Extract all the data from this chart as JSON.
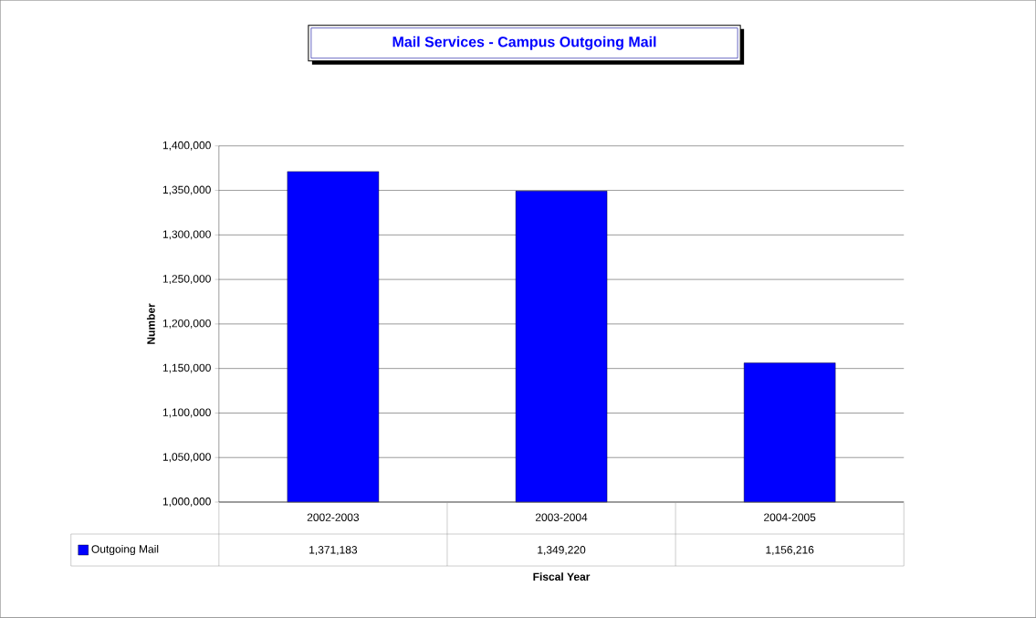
{
  "chart_data": {
    "type": "bar",
    "title": "Mail Services - Campus Outgoing Mail",
    "xlabel": "Fiscal Year",
    "ylabel": "Number",
    "categories": [
      "2002-2003",
      "2003-2004",
      "2004-2005"
    ],
    "series": [
      {
        "name": "Outgoing Mail",
        "color": "#0000ff",
        "values": [
          1371183,
          1349220,
          1156216
        ],
        "value_labels": [
          "1,371,183",
          "1,349,220",
          "1,156,216"
        ]
      }
    ],
    "ylim": [
      1000000,
      1400000
    ],
    "yticks": [
      {
        "value": 1000000,
        "label": "1,000,000"
      },
      {
        "value": 1050000,
        "label": "1,050,000"
      },
      {
        "value": 1100000,
        "label": "1,100,000"
      },
      {
        "value": 1150000,
        "label": "1,150,000"
      },
      {
        "value": 1200000,
        "label": "1,200,000"
      },
      {
        "value": 1250000,
        "label": "1,250,000"
      },
      {
        "value": 1300000,
        "label": "1,300,000"
      },
      {
        "value": 1350000,
        "label": "1,350,000"
      },
      {
        "value": 1400000,
        "label": "1,400,000"
      }
    ],
    "grid": "y",
    "legend": "bottom left"
  }
}
